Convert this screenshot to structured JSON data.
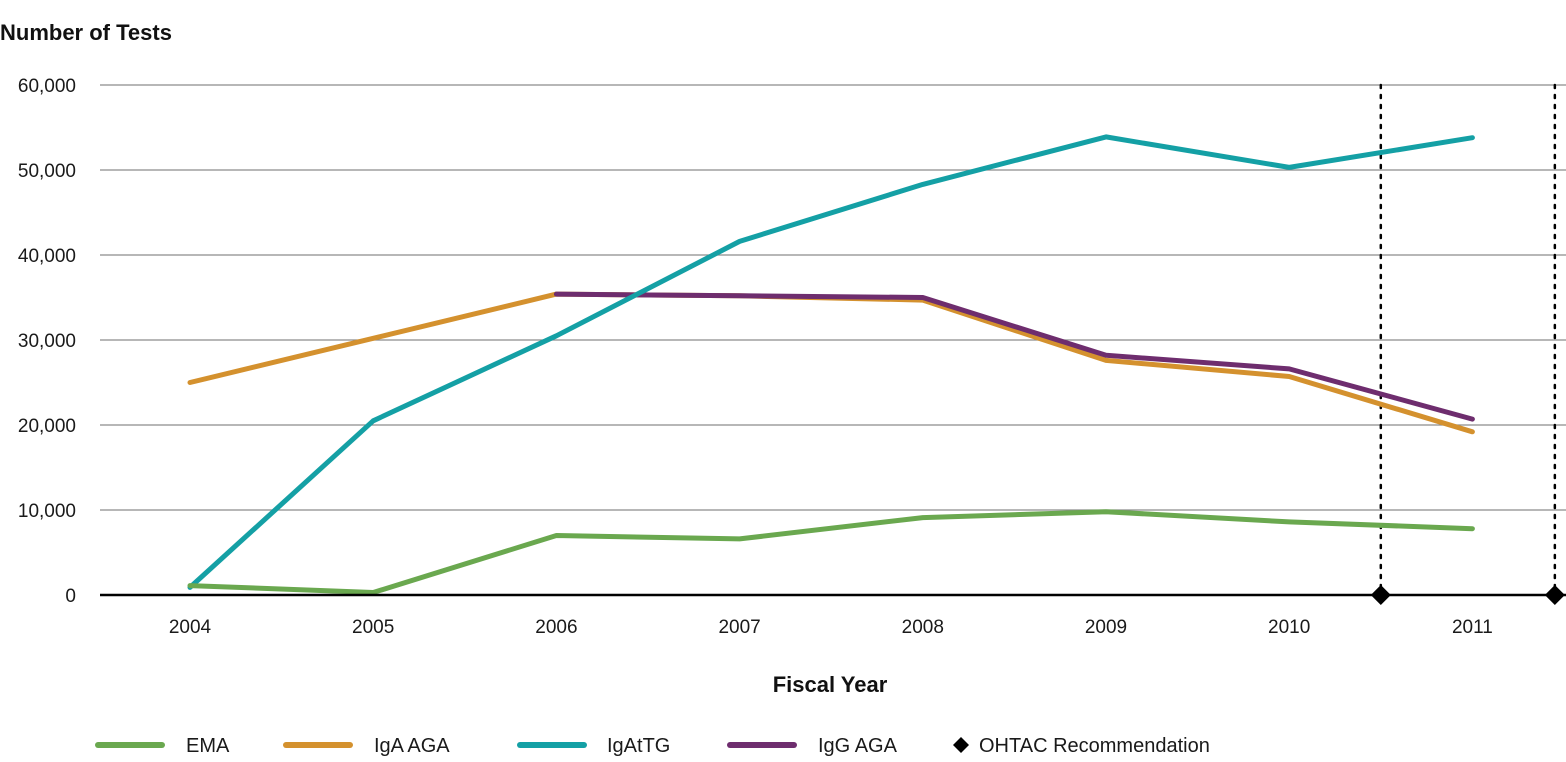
{
  "chart_data": {
    "type": "line",
    "ylabel": "Number of Tests",
    "xlabel": "Fiscal Year",
    "categories": [
      "2004",
      "2005",
      "2006",
      "2007",
      "2008",
      "2009",
      "2010",
      "2011"
    ],
    "ylim": [
      0,
      60000
    ],
    "yticks": [
      0,
      10000,
      20000,
      30000,
      40000,
      50000,
      60000
    ],
    "ytick_labels": [
      "0",
      "10,000",
      "20,000",
      "30,000",
      "40,000",
      "50,000",
      "60,000"
    ],
    "grid": true,
    "series": [
      {
        "name": "EMA",
        "color": "#6aa84f",
        "values": [
          1100,
          300,
          7000,
          6600,
          9100,
          9800,
          8600,
          7800
        ]
      },
      {
        "name": "IgA AGA",
        "color": "#d4912e",
        "values": [
          25000,
          30200,
          35400,
          35200,
          34700,
          27600,
          25700,
          19200
        ]
      },
      {
        "name": "IgAtTG",
        "color": "#14a0a5",
        "values": [
          900,
          20500,
          30500,
          41600,
          48300,
          53900,
          50300,
          53800
        ]
      },
      {
        "name": "IgG AGA",
        "color": "#6e2d6e",
        "values": [
          null,
          null,
          35400,
          35200,
          35000,
          28200,
          26600,
          20700
        ]
      }
    ],
    "recommendations": {
      "name": "OHTAC Recommendation",
      "x": [
        6.5,
        7.45
      ],
      "marker": "diamond",
      "color": "#000000"
    },
    "legend_position": "bottom"
  }
}
